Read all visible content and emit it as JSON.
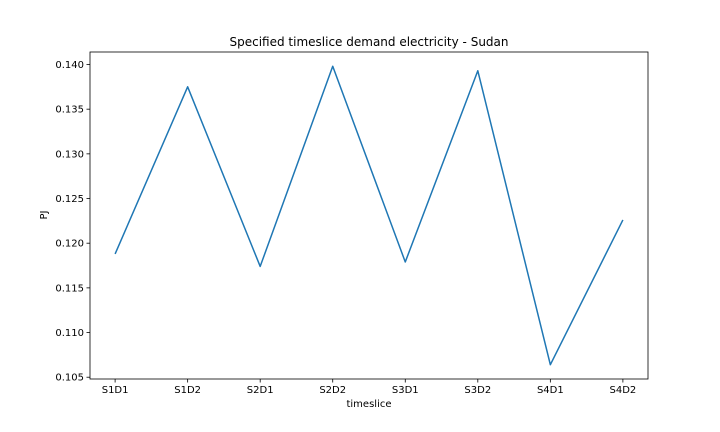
{
  "chart_data": {
    "type": "line",
    "title": "Specified timeslice demand electricity - Sudan",
    "xlabel": "timeslice",
    "ylabel": "PJ",
    "categories": [
      "S1D1",
      "S1D2",
      "S2D1",
      "S2D2",
      "S3D1",
      "S3D2",
      "S4D1",
      "S4D2"
    ],
    "series": [
      {
        "name": "electricity",
        "values": [
          0.1188,
          0.1375,
          0.1174,
          0.1398,
          0.1179,
          0.1393,
          0.1064,
          0.1226
        ],
        "color": "#1f77b4"
      }
    ],
    "ylim": [
      0.1048,
      0.1414
    ],
    "yticks": [
      "0.105",
      "0.110",
      "0.115",
      "0.120",
      "0.125",
      "0.130",
      "0.135",
      "0.140"
    ],
    "grid": false,
    "legend": "none"
  }
}
